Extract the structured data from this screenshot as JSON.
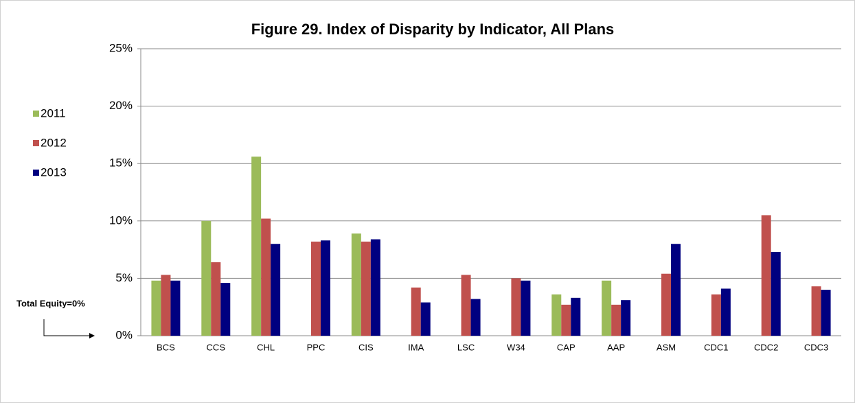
{
  "chart_data": {
    "type": "bar",
    "title": "Figure 29. Index of Disparity by Indicator, All Plans",
    "annotation": "Total Equity=0%",
    "categories": [
      "BCS",
      "CCS",
      "CHL",
      "PPC",
      "CIS",
      "IMA",
      "LSC",
      "W34",
      "CAP",
      "AAP",
      "ASM",
      "CDC1",
      "CDC2",
      "CDC3"
    ],
    "series": [
      {
        "name": "2011",
        "color": "#9bbb59",
        "values": [
          4.8,
          10.0,
          15.6,
          null,
          8.9,
          null,
          null,
          null,
          3.6,
          4.8,
          null,
          null,
          null,
          null
        ]
      },
      {
        "name": "2012",
        "color": "#c0504d",
        "values": [
          5.3,
          6.4,
          10.2,
          8.2,
          8.2,
          4.2,
          5.3,
          5.0,
          2.7,
          2.7,
          5.4,
          3.6,
          10.5,
          4.3
        ]
      },
      {
        "name": "2013",
        "color": "#000080",
        "values": [
          4.8,
          4.6,
          8.0,
          8.3,
          8.4,
          2.9,
          3.2,
          4.8,
          3.3,
          3.1,
          8.0,
          4.1,
          7.3,
          4.0
        ]
      }
    ],
    "ylim": [
      0,
      25
    ],
    "yticks": [
      {
        "value": 0,
        "label": "0%"
      },
      {
        "value": 5,
        "label": "5%"
      },
      {
        "value": 10,
        "label": "10%"
      },
      {
        "value": 15,
        "label": "15%"
      },
      {
        "value": 20,
        "label": "20%"
      },
      {
        "value": 25,
        "label": "25%"
      }
    ],
    "grid": true,
    "legend": "left"
  }
}
